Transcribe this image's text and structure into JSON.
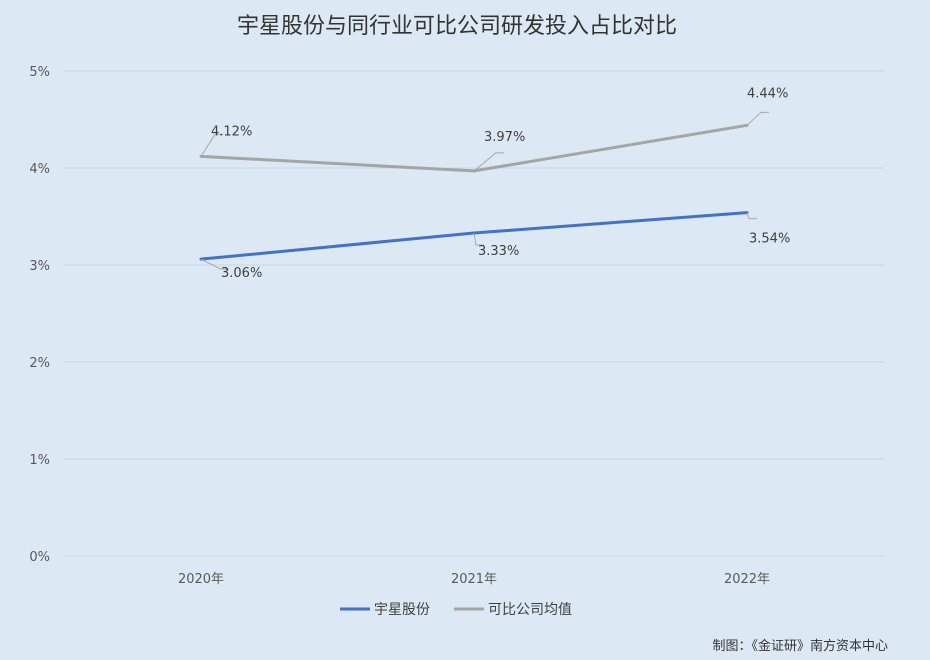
{
  "chart_data": {
    "type": "line",
    "title": "宇星股份与同行业可比公司研发投入占比对比",
    "categories": [
      "2020年",
      "2021年",
      "2022年"
    ],
    "series": [
      {
        "name": "宇星股份",
        "color": "#4472c4",
        "values": [
          3.06,
          3.33,
          3.54
        ],
        "labels": [
          "3.06%",
          "3.33%",
          "3.54%"
        ]
      },
      {
        "name": "可比公司均值",
        "color": "#a5a5a5",
        "values": [
          4.12,
          3.97,
          4.44
        ],
        "labels": [
          "4.12%",
          "3.97%",
          "4.44%"
        ]
      }
    ],
    "ylim": [
      0,
      5
    ],
    "yticks": [
      0,
      1,
      2,
      3,
      4,
      5
    ],
    "ytick_labels": [
      "0%",
      "1%",
      "2%",
      "3%",
      "4%",
      "5%"
    ],
    "grid": true,
    "legend_position": "bottom",
    "gridline_color": "#c8d6e5"
  },
  "footer": {
    "credit": "制图：《金证研》南方资本中心"
  }
}
